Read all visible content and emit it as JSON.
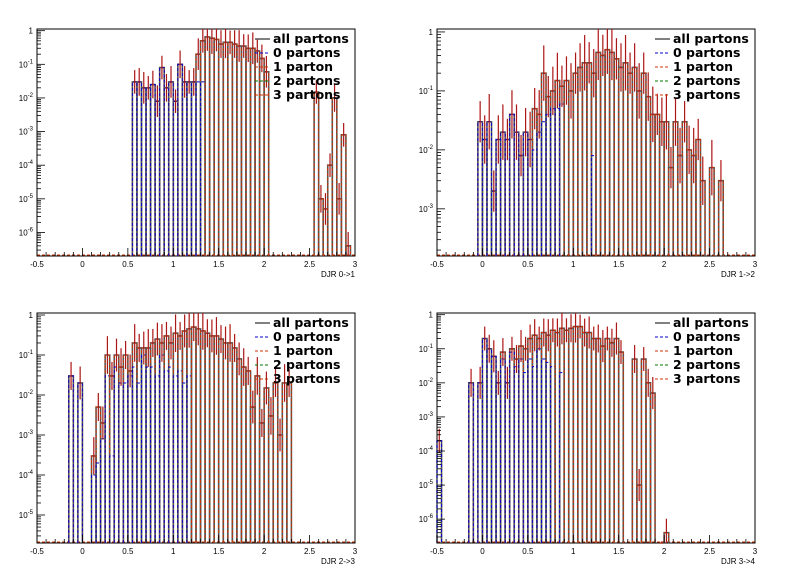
{
  "colors": {
    "all": "#555555",
    "zero": "#0000cc",
    "one": "#cc3300",
    "two": "#007700",
    "three": "#cc3300",
    "err": "#cc0000"
  },
  "chart_data": [
    {
      "type": "bar",
      "xlabel": "DJR 0->1",
      "xlim": [
        -0.5,
        3
      ],
      "ylim_log": [
        -6.7,
        0.05
      ],
      "ytick_exps": [
        0,
        -1,
        -2,
        -3,
        -4,
        -5,
        -6
      ],
      "xticks": [
        "-0.5",
        "0",
        "0.5",
        "1",
        "1.5",
        "2",
        "2.5",
        "3"
      ],
      "legend": [
        "all partons",
        "0 partons",
        "1 parton",
        "2 partons",
        "3 partons"
      ],
      "bin_width": 0.05,
      "bins": [
        {
          "x": 0.55,
          "all": 0.03,
          "zero": 0.03
        },
        {
          "x": 0.6,
          "all": 0.03,
          "zero": 0.03
        },
        {
          "x": 0.65,
          "all": 0.02,
          "zero": 0.02
        },
        {
          "x": 0.7,
          "all": 0.02,
          "zero": 0.02
        },
        {
          "x": 0.75,
          "all": 0.025,
          "zero": 0.025
        },
        {
          "x": 0.8,
          "all": 0.008,
          "zero": 0.008
        },
        {
          "x": 0.85,
          "all": 0.08,
          "zero": 0.08
        },
        {
          "x": 0.9,
          "all": 0.02,
          "zero": 0.02
        },
        {
          "x": 0.95,
          "all": 0.03,
          "zero": 0.03
        },
        {
          "x": 1.0,
          "all": 0.008,
          "zero": 0.008
        },
        {
          "x": 1.05,
          "all": 0.1,
          "zero": 0.1
        },
        {
          "x": 1.1,
          "all": 0.03,
          "zero": 0.03
        },
        {
          "x": 1.15,
          "all": 0.03,
          "zero": 0.03
        },
        {
          "x": 1.2,
          "all": 0.03,
          "zero": 0.03
        },
        {
          "x": 1.25,
          "all": 0.2,
          "zero": 0.03
        },
        {
          "x": 1.3,
          "all": 0.5,
          "zero": 0.03
        },
        {
          "x": 1.35,
          "all": 0.65
        },
        {
          "x": 1.4,
          "all": 0.6
        },
        {
          "x": 1.45,
          "all": 0.55
        },
        {
          "x": 1.5,
          "all": 0.4
        },
        {
          "x": 1.55,
          "all": 0.45
        },
        {
          "x": 1.6,
          "all": 0.45
        },
        {
          "x": 1.65,
          "all": 0.4
        },
        {
          "x": 1.7,
          "all": 0.35
        },
        {
          "x": 1.75,
          "all": 0.35
        },
        {
          "x": 1.8,
          "all": 0.3
        },
        {
          "x": 1.85,
          "all": 0.3
        },
        {
          "x": 1.9,
          "all": 0.25
        },
        {
          "x": 1.95,
          "all": 0.15
        },
        {
          "x": 2.0,
          "all": 0.06
        },
        {
          "x": 2.55,
          "all": 0.015
        },
        {
          "x": 2.6,
          "all": 1e-05
        },
        {
          "x": 2.65,
          "all": 5e-06
        },
        {
          "x": 2.7,
          "all": 0.0001
        },
        {
          "x": 2.75,
          "all": 0.01
        },
        {
          "x": 2.8,
          "all": 1e-05
        },
        {
          "x": 2.85,
          "all": 0.0008
        },
        {
          "x": 2.9,
          "all": 4e-07
        }
      ]
    },
    {
      "type": "bar",
      "xlabel": "DJR 1->2",
      "xlim": [
        -0.5,
        3
      ],
      "ylim_log": [
        -3.8,
        0.05
      ],
      "ytick_exps": [
        0,
        -1,
        -2,
        -3
      ],
      "xticks": [
        "-0.5",
        "0",
        "0.5",
        "1",
        "1.5",
        "2",
        "2.5",
        "3"
      ],
      "legend": [
        "all partons",
        "0 partons",
        "1 parton",
        "2 partons",
        "3 partons"
      ],
      "bin_width": 0.05,
      "bins": [
        {
          "x": -0.05,
          "all": 0.03,
          "zero": 0.03
        },
        {
          "x": 0.0,
          "all": 0.015,
          "zero": 0.015
        },
        {
          "x": 0.05,
          "all": 0.03,
          "zero": 0.03
        },
        {
          "x": 0.1,
          "all": 0.002,
          "zero": 0.002
        },
        {
          "x": 0.15,
          "all": 0.015,
          "zero": 0.015
        },
        {
          "x": 0.2,
          "all": 0.02,
          "zero": 0.02
        },
        {
          "x": 0.25,
          "all": 0.015,
          "zero": 0.015
        },
        {
          "x": 0.3,
          "all": 0.04,
          "zero": 0.04
        },
        {
          "x": 0.35,
          "all": 0.02,
          "zero": 0.02
        },
        {
          "x": 0.4,
          "all": 0.008,
          "zero": 0.008
        },
        {
          "x": 0.45,
          "all": 0.02,
          "zero": 0.02
        },
        {
          "x": 0.5,
          "all": 0.015,
          "zero": 0.015
        },
        {
          "x": 0.55,
          "all": 0.05,
          "zero": 0.01
        },
        {
          "x": 0.6,
          "all": 0.04,
          "zero": 0.02
        },
        {
          "x": 0.65,
          "all": 0.2,
          "zero": 0.03
        },
        {
          "x": 0.7,
          "all": 0.08,
          "zero": 0.04
        },
        {
          "x": 0.75,
          "all": 0.1,
          "zero": 0.05
        },
        {
          "x": 0.8,
          "all": 0.15,
          "zero": 0.05
        },
        {
          "x": 0.85,
          "all": 0.12,
          "zero": 0.06
        },
        {
          "x": 0.9,
          "all": 0.15
        },
        {
          "x": 0.95,
          "all": 0.1
        },
        {
          "x": 1.0,
          "all": 0.2
        },
        {
          "x": 1.05,
          "all": 0.25
        },
        {
          "x": 1.1,
          "all": 0.3
        },
        {
          "x": 1.15,
          "all": 0.3
        },
        {
          "x": 1.2,
          "all": 0.2,
          "zero": 0.008
        },
        {
          "x": 1.25,
          "all": 0.45
        },
        {
          "x": 1.3,
          "all": 0.4
        },
        {
          "x": 1.35,
          "all": 0.5
        },
        {
          "x": 1.4,
          "all": 0.45
        },
        {
          "x": 1.45,
          "all": 0.35
        },
        {
          "x": 1.5,
          "all": 0.25
        },
        {
          "x": 1.55,
          "all": 0.3
        },
        {
          "x": 1.6,
          "all": 0.2
        },
        {
          "x": 1.65,
          "all": 0.25
        },
        {
          "x": 1.7,
          "all": 0.1
        },
        {
          "x": 1.75,
          "all": 0.2
        },
        {
          "x": 1.8,
          "all": 0.08
        },
        {
          "x": 1.85,
          "all": 0.04
        },
        {
          "x": 1.9,
          "all": 0.04
        },
        {
          "x": 1.95,
          "all": 0.03
        },
        {
          "x": 2.0,
          "all": 0.03
        },
        {
          "x": 2.05,
          "all": 0.005
        },
        {
          "x": 2.1,
          "all": 0.03
        },
        {
          "x": 2.15,
          "all": 0.008
        },
        {
          "x": 2.2,
          "all": 0.03
        },
        {
          "x": 2.25,
          "all": 0.01
        },
        {
          "x": 2.3,
          "all": 0.008
        },
        {
          "x": 2.35,
          "all": 0.015
        },
        {
          "x": 2.4,
          "all": 0.003
        },
        {
          "x": 2.5,
          "all": 0.005
        },
        {
          "x": 2.6,
          "all": 0.003
        }
      ]
    },
    {
      "type": "bar",
      "xlabel": "DJR 2->3",
      "xlim": [
        -0.5,
        3
      ],
      "ylim_log": [
        -5.7,
        0.05
      ],
      "ytick_exps": [
        0,
        -1,
        -2,
        -3,
        -4,
        -5
      ],
      "xticks": [
        "-0.5",
        "0",
        "0.5",
        "1",
        "1.5",
        "2",
        "2.5",
        "3"
      ],
      "legend": [
        "all partons",
        "0 partons",
        "1 parton",
        "2 partons",
        "3 partons"
      ],
      "bin_width": 0.05,
      "bins": [
        {
          "x": -0.15,
          "all": 0.03,
          "zero": 0.03
        },
        {
          "x": -0.05,
          "all": 0.02,
          "zero": 0.02
        },
        {
          "x": 0.1,
          "all": 0.0003,
          "zero": 0.0001
        },
        {
          "x": 0.15,
          "all": 0.005,
          "zero": 0.0002
        },
        {
          "x": 0.2,
          "all": 0.002,
          "zero": 0.0008
        },
        {
          "x": 0.25,
          "all": 0.1,
          "zero": 0.03
        },
        {
          "x": 0.3,
          "all": 0.03,
          "zero": 0.0003
        },
        {
          "x": 0.35,
          "all": 0.1,
          "zero": 0.05
        },
        {
          "x": 0.4,
          "all": 0.05,
          "zero": 0.02
        },
        {
          "x": 0.45,
          "all": 0.1,
          "zero": 0.02
        },
        {
          "x": 0.5,
          "all": 0.04,
          "zero": 0.03
        },
        {
          "x": 0.55,
          "all": 0.2,
          "zero": 0.05
        },
        {
          "x": 0.6,
          "all": 0.15,
          "zero": 0.02
        },
        {
          "x": 0.65,
          "all": 0.15,
          "zero": 0.1
        },
        {
          "x": 0.7,
          "all": 0.15,
          "zero": 0.05
        },
        {
          "x": 0.75,
          "all": 0.2,
          "zero": 0.05
        },
        {
          "x": 0.8,
          "all": 0.25,
          "zero": 0.03
        },
        {
          "x": 0.85,
          "all": 0.2,
          "zero": 0.1
        },
        {
          "x": 0.9,
          "all": 0.3,
          "zero": 0.04
        },
        {
          "x": 0.95,
          "all": 0.2,
          "zero": 0.05
        },
        {
          "x": 1.0,
          "all": 0.35,
          "zero": 0.03
        },
        {
          "x": 1.05,
          "all": 0.3,
          "zero": 0.04
        },
        {
          "x": 1.1,
          "all": 0.4,
          "zero": 0.02
        },
        {
          "x": 1.15,
          "all": 0.45,
          "zero": 0.03
        },
        {
          "x": 1.2,
          "all": 0.5
        },
        {
          "x": 1.25,
          "all": 0.45
        },
        {
          "x": 1.3,
          "all": 0.4
        },
        {
          "x": 1.35,
          "all": 0.35
        },
        {
          "x": 1.4,
          "all": 0.3
        },
        {
          "x": 1.45,
          "all": 0.3
        },
        {
          "x": 1.5,
          "all": 0.25
        },
        {
          "x": 1.55,
          "all": 0.2
        },
        {
          "x": 1.6,
          "all": 0.2
        },
        {
          "x": 1.65,
          "all": 0.15
        },
        {
          "x": 1.7,
          "all": 0.08
        },
        {
          "x": 1.75,
          "all": 0.05
        },
        {
          "x": 1.8,
          "all": 0.04
        },
        {
          "x": 1.85,
          "all": 0.005
        },
        {
          "x": 1.9,
          "all": 0.03
        },
        {
          "x": 1.95,
          "all": 0.002
        },
        {
          "x": 2.0,
          "all": 0.015
        },
        {
          "x": 2.05,
          "all": 0.003
        },
        {
          "x": 2.1,
          "all": 0.02
        },
        {
          "x": 2.15,
          "all": 0.001
        },
        {
          "x": 2.2,
          "all": 0.02
        },
        {
          "x": 2.25,
          "all": 0.02
        }
      ]
    },
    {
      "type": "bar",
      "xlabel": "DJR 3->4",
      "xlim": [
        -0.5,
        3
      ],
      "ylim_log": [
        -6.7,
        0.05
      ],
      "ytick_exps": [
        0,
        -1,
        -2,
        -3,
        -4,
        -5,
        -6
      ],
      "xticks": [
        "-0.5",
        "0",
        "0.5",
        "1",
        "1.5",
        "2",
        "2.5",
        "3"
      ],
      "legend": [
        "all partons",
        "0 partons",
        "1 parton",
        "2 partons",
        "3 partons"
      ],
      "bin_width": 0.05,
      "bins": [
        {
          "x": -0.5,
          "all": 0.0002,
          "zero": 0.0002
        },
        {
          "x": -0.15,
          "all": 0.01,
          "zero": 0.01
        },
        {
          "x": -0.05,
          "all": 0.01,
          "zero": 0.01
        },
        {
          "x": 0.0,
          "all": 0.2,
          "zero": 0.2
        },
        {
          "x": 0.05,
          "all": 0.1,
          "zero": 0.1
        },
        {
          "x": 0.1,
          "all": 0.06,
          "zero": 0.06
        },
        {
          "x": 0.15,
          "all": 0.01,
          "zero": 0.01
        },
        {
          "x": 0.2,
          "all": 0.08,
          "zero": 0.05
        },
        {
          "x": 0.25,
          "all": 0.01,
          "zero": 0.01
        },
        {
          "x": 0.3,
          "all": 0.1,
          "zero": 0.08
        },
        {
          "x": 0.35,
          "all": 0.05,
          "zero": 0.03
        },
        {
          "x": 0.4,
          "all": 0.12,
          "zero": 0.05
        },
        {
          "x": 0.45,
          "all": 0.1,
          "zero": 0.02
        },
        {
          "x": 0.5,
          "all": 0.2,
          "zero": 0.05
        },
        {
          "x": 0.55,
          "all": 0.25,
          "zero": 0.03
        },
        {
          "x": 0.6,
          "all": 0.2,
          "zero": 0.1
        },
        {
          "x": 0.65,
          "all": 0.3,
          "zero": 0.05
        },
        {
          "x": 0.7,
          "all": 0.25,
          "zero": 0.04
        },
        {
          "x": 0.75,
          "all": 0.35,
          "zero": 0.03
        },
        {
          "x": 0.8,
          "all": 0.3
        },
        {
          "x": 0.85,
          "all": 0.4,
          "zero": 0.02
        },
        {
          "x": 0.9,
          "all": 0.35
        },
        {
          "x": 0.95,
          "all": 0.4
        },
        {
          "x": 1.0,
          "all": 0.45
        },
        {
          "x": 1.05,
          "all": 0.45
        },
        {
          "x": 1.1,
          "all": 0.3
        },
        {
          "x": 1.15,
          "all": 0.3
        },
        {
          "x": 1.2,
          "all": 0.2
        },
        {
          "x": 1.25,
          "all": 0.2
        },
        {
          "x": 1.3,
          "all": 0.12
        },
        {
          "x": 1.35,
          "all": 0.2
        },
        {
          "x": 1.4,
          "all": 0.15
        },
        {
          "x": 1.45,
          "all": 0.2
        },
        {
          "x": 1.5,
          "all": 0.08
        },
        {
          "x": 1.65,
          "all": 0.05
        },
        {
          "x": 1.7,
          "all": 1e-05
        },
        {
          "x": 1.75,
          "all": 0.05
        },
        {
          "x": 1.8,
          "all": 0.01
        },
        {
          "x": 1.85,
          "all": 0.005
        },
        {
          "x": 1.95,
          "all": 1e-07
        },
        {
          "x": 2.0,
          "all": 4e-07
        }
      ]
    }
  ]
}
